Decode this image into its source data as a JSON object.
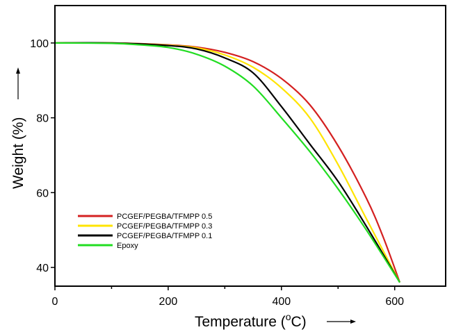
{
  "chart_data": {
    "type": "line",
    "title": "",
    "xlabel": "Temperature (",
    "xlabel_sup": "o",
    "xlabel_unit": "C)",
    "ylabel": "Weight (%)",
    "xlim": [
      0,
      690
    ],
    "ylim": [
      35,
      110
    ],
    "xticks": [
      0,
      200,
      400,
      600
    ],
    "xtick_labels": [
      "0",
      "200",
      "400",
      "600"
    ],
    "xminor": [
      100,
      300,
      500
    ],
    "yticks": [
      40,
      60,
      80,
      100
    ],
    "ytick_labels": [
      "40",
      "60",
      "80",
      "100"
    ],
    "grid": false,
    "legend_position": "lower-left",
    "series": [
      {
        "name": "PCGEF/PEGBA/TFMPP 0.5",
        "color": "#d42020",
        "x": [
          0,
          100,
          200,
          250,
          300,
          350,
          400,
          450,
          500,
          550,
          580,
          609
        ],
        "y": [
          100,
          100,
          99.5,
          98.9,
          97.5,
          95,
          90.5,
          83.5,
          72.5,
          58.5,
          48,
          36
        ]
      },
      {
        "name": "PCGEF/PEGBA/TFMPP 0.3",
        "color": "#ffe400",
        "x": [
          0,
          100,
          200,
          250,
          300,
          350,
          400,
          450,
          500,
          550,
          609
        ],
        "y": [
          100,
          100,
          99.4,
          98.7,
          96.8,
          93.5,
          88,
          80,
          67.5,
          53,
          36
        ]
      },
      {
        "name": "PCGEF/PEGBA/TFMPP 0.1",
        "color": "#000000",
        "x": [
          0,
          100,
          200,
          250,
          300,
          350,
          400,
          450,
          500,
          550,
          609
        ],
        "y": [
          100,
          100,
          99.3,
          98.4,
          96,
          92,
          83,
          73,
          63,
          51,
          36
        ]
      },
      {
        "name": "Epoxy",
        "color": "#22dd22",
        "x": [
          0,
          100,
          150,
          200,
          250,
          300,
          350,
          400,
          450,
          500,
          550,
          609
        ],
        "y": [
          100,
          99.9,
          99.5,
          98.8,
          97,
          93.8,
          88.5,
          80,
          71,
          61,
          50,
          36
        ]
      }
    ]
  }
}
